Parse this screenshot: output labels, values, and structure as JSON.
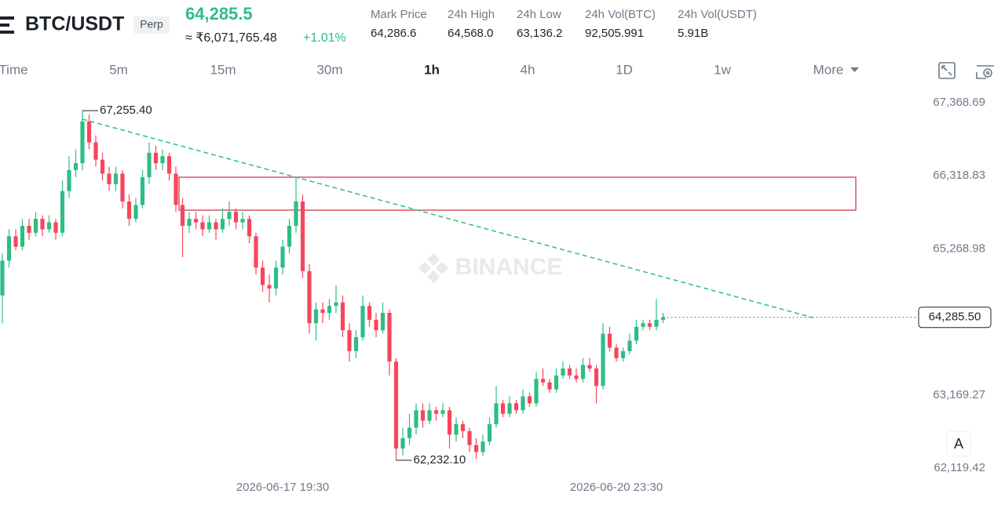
{
  "header": {
    "symbol": "BTC/USDT",
    "badge": "Perp",
    "last_price": "64,285.5",
    "fiat_price": "≈ ₹6,071,765.48",
    "change": "+1.01%",
    "stats": [
      {
        "label": "Mark Price",
        "value": "64,286.6"
      },
      {
        "label": "24h High",
        "value": "64,568.0"
      },
      {
        "label": "24h Low",
        "value": "63,136.2"
      },
      {
        "label": "24h Vol(BTC)",
        "value": "92,505.991"
      },
      {
        "label": "24h Vol(USDT)",
        "value": "5.91B"
      }
    ]
  },
  "intervals": [
    "Time",
    "5m",
    "15m",
    "30m",
    "1h",
    "4h",
    "1D",
    "1w",
    "More"
  ],
  "active_interval_index": 4,
  "auto_button": "A",
  "chart_data": {
    "type": "candlestick",
    "watermark": "BINANCE",
    "up_color": "#2ebd85",
    "down_color": "#f6465d",
    "ylim": [
      61973,
      67549
    ],
    "yticks": [
      {
        "value": 67368.69,
        "label": "67,368.69"
      },
      {
        "value": 66318.83,
        "label": "66,318.83"
      },
      {
        "value": 65268.98,
        "label": "65,268.98"
      },
      {
        "value": 63169.27,
        "label": "63,169.27"
      },
      {
        "value": 62119.42,
        "label": "62,119.42"
      }
    ],
    "x_labels": [
      {
        "index": 42,
        "label": "2026-06-17 19:30"
      },
      {
        "index": 92,
        "label": "2026-06-20 23:30"
      }
    ],
    "max_marker": {
      "index": 12,
      "value": 67255.4,
      "label": "67,255.40"
    },
    "min_marker": {
      "index": 59,
      "value": 62232.1,
      "label": "62,232.10"
    },
    "last_price": {
      "value": 64285.5,
      "label": "64,285.50"
    },
    "candles": [
      [
        64600,
        65200,
        64200,
        65100
      ],
      [
        65100,
        65550,
        65000,
        65450
      ],
      [
        65450,
        65550,
        65250,
        65300
      ],
      [
        65300,
        65700,
        65250,
        65600
      ],
      [
        65600,
        65700,
        65400,
        65500
      ],
      [
        65500,
        65800,
        65450,
        65700
      ],
      [
        65700,
        65750,
        65450,
        65550
      ],
      [
        65550,
        65750,
        65500,
        65650
      ],
      [
        65650,
        65700,
        65400,
        65500
      ],
      [
        65500,
        66250,
        65450,
        66100
      ],
      [
        66100,
        66600,
        66000,
        66400
      ],
      [
        66400,
        66700,
        66300,
        66500
      ],
      [
        66500,
        67255.4,
        66400,
        67100
      ],
      [
        67100,
        67200,
        66700,
        66800
      ],
      [
        66800,
        66900,
        66450,
        66550
      ],
      [
        66550,
        66650,
        66250,
        66350
      ],
      [
        66350,
        66450,
        66100,
        66200
      ],
      [
        66200,
        66450,
        66100,
        66350
      ],
      [
        66350,
        66400,
        65850,
        65950
      ],
      [
        65950,
        66050,
        65600,
        65700
      ],
      [
        65700,
        66000,
        65650,
        65900
      ],
      [
        65900,
        66400,
        65850,
        66300
      ],
      [
        66300,
        66800,
        66200,
        66650
      ],
      [
        66650,
        66750,
        66400,
        66500
      ],
      [
        66500,
        66700,
        66400,
        66600
      ],
      [
        66600,
        66650,
        66250,
        66350
      ],
      [
        66350,
        66450,
        65800,
        65900
      ],
      [
        65900,
        66000,
        65150,
        65600
      ],
      [
        65600,
        65800,
        65500,
        65700
      ],
      [
        65700,
        65800,
        65550,
        65650
      ],
      [
        65650,
        65750,
        65450,
        65550
      ],
      [
        65550,
        65750,
        65500,
        65650
      ],
      [
        65650,
        65700,
        65400,
        65550
      ],
      [
        65550,
        65850,
        65500,
        65700
      ],
      [
        65700,
        65950,
        65600,
        65800
      ],
      [
        65800,
        65850,
        65550,
        65650
      ],
      [
        65650,
        65800,
        65550,
        65700
      ],
      [
        65700,
        65750,
        65350,
        65450
      ],
      [
        65450,
        65500,
        64900,
        65000
      ],
      [
        65000,
        65100,
        64650,
        64750
      ],
      [
        64750,
        64900,
        64500,
        64700
      ],
      [
        64700,
        65100,
        64600,
        65000
      ],
      [
        65000,
        65400,
        64900,
        65300
      ],
      [
        65300,
        65700,
        65200,
        65600
      ],
      [
        65600,
        66300,
        65500,
        65950
      ],
      [
        65950,
        66050,
        64850,
        64950
      ],
      [
        64950,
        65050,
        64050,
        64200
      ],
      [
        64200,
        64500,
        63950,
        64400
      ],
      [
        64400,
        64500,
        64200,
        64350
      ],
      [
        64350,
        64550,
        64250,
        64450
      ],
      [
        64450,
        64750,
        64350,
        64500
      ],
      [
        64500,
        64600,
        64000,
        64100
      ],
      [
        64100,
        64200,
        63650,
        63800
      ],
      [
        63800,
        64100,
        63700,
        64000
      ],
      [
        64000,
        64600,
        63950,
        64450
      ],
      [
        64450,
        64500,
        64150,
        64250
      ],
      [
        64250,
        64350,
        64000,
        64100
      ],
      [
        64100,
        64500,
        64050,
        64350
      ],
      [
        64350,
        64400,
        63450,
        63650
      ],
      [
        63650,
        63700,
        62232.1,
        62400
      ],
      [
        62400,
        62700,
        62300,
        62550
      ],
      [
        62550,
        62900,
        62450,
        62700
      ],
      [
        62700,
        63050,
        62600,
        62950
      ],
      [
        62950,
        63050,
        62700,
        62800
      ],
      [
        62800,
        63050,
        62750,
        62950
      ],
      [
        62950,
        63000,
        62800,
        62900
      ],
      [
        62900,
        63050,
        62850,
        62950
      ],
      [
        62950,
        63000,
        62400,
        62600
      ],
      [
        62600,
        62850,
        62500,
        62750
      ],
      [
        62750,
        62800,
        62550,
        62650
      ],
      [
        62650,
        62700,
        62350,
        62450
      ],
      [
        62450,
        62550,
        62250,
        62350
      ],
      [
        62350,
        62600,
        62300,
        62500
      ],
      [
        62500,
        62850,
        62450,
        62750
      ],
      [
        62750,
        63300,
        62700,
        63050
      ],
      [
        63050,
        63100,
        62850,
        62900
      ],
      [
        62900,
        63150,
        62850,
        63050
      ],
      [
        63050,
        63100,
        62900,
        62950
      ],
      [
        62950,
        63250,
        62900,
        63150
      ],
      [
        63150,
        63200,
        63000,
        63050
      ],
      [
        63050,
        63500,
        63000,
        63400
      ],
      [
        63400,
        63550,
        63300,
        63350
      ],
      [
        63350,
        63400,
        63200,
        63250
      ],
      [
        63250,
        63550,
        63200,
        63450
      ],
      [
        63450,
        63650,
        63400,
        63550
      ],
      [
        63550,
        63600,
        63400,
        63450
      ],
      [
        63450,
        63550,
        63350,
        63400
      ],
      [
        63400,
        63700,
        63350,
        63600
      ],
      [
        63600,
        63700,
        63500,
        63550
      ],
      [
        63550,
        63600,
        63050,
        63300
      ],
      [
        63300,
        64200,
        63250,
        64050
      ],
      [
        64050,
        64150,
        63800,
        63850
      ],
      [
        63850,
        63900,
        63650,
        63700
      ],
      [
        63700,
        63850,
        63650,
        63800
      ],
      [
        63800,
        64050,
        63750,
        63950
      ],
      [
        63950,
        64250,
        63900,
        64150
      ],
      [
        64150,
        64250,
        64100,
        64200
      ],
      [
        64200,
        64250,
        64100,
        64150
      ],
      [
        64150,
        64550,
        64100,
        64250
      ],
      [
        64250,
        64350,
        64200,
        64285.5
      ]
    ]
  }
}
